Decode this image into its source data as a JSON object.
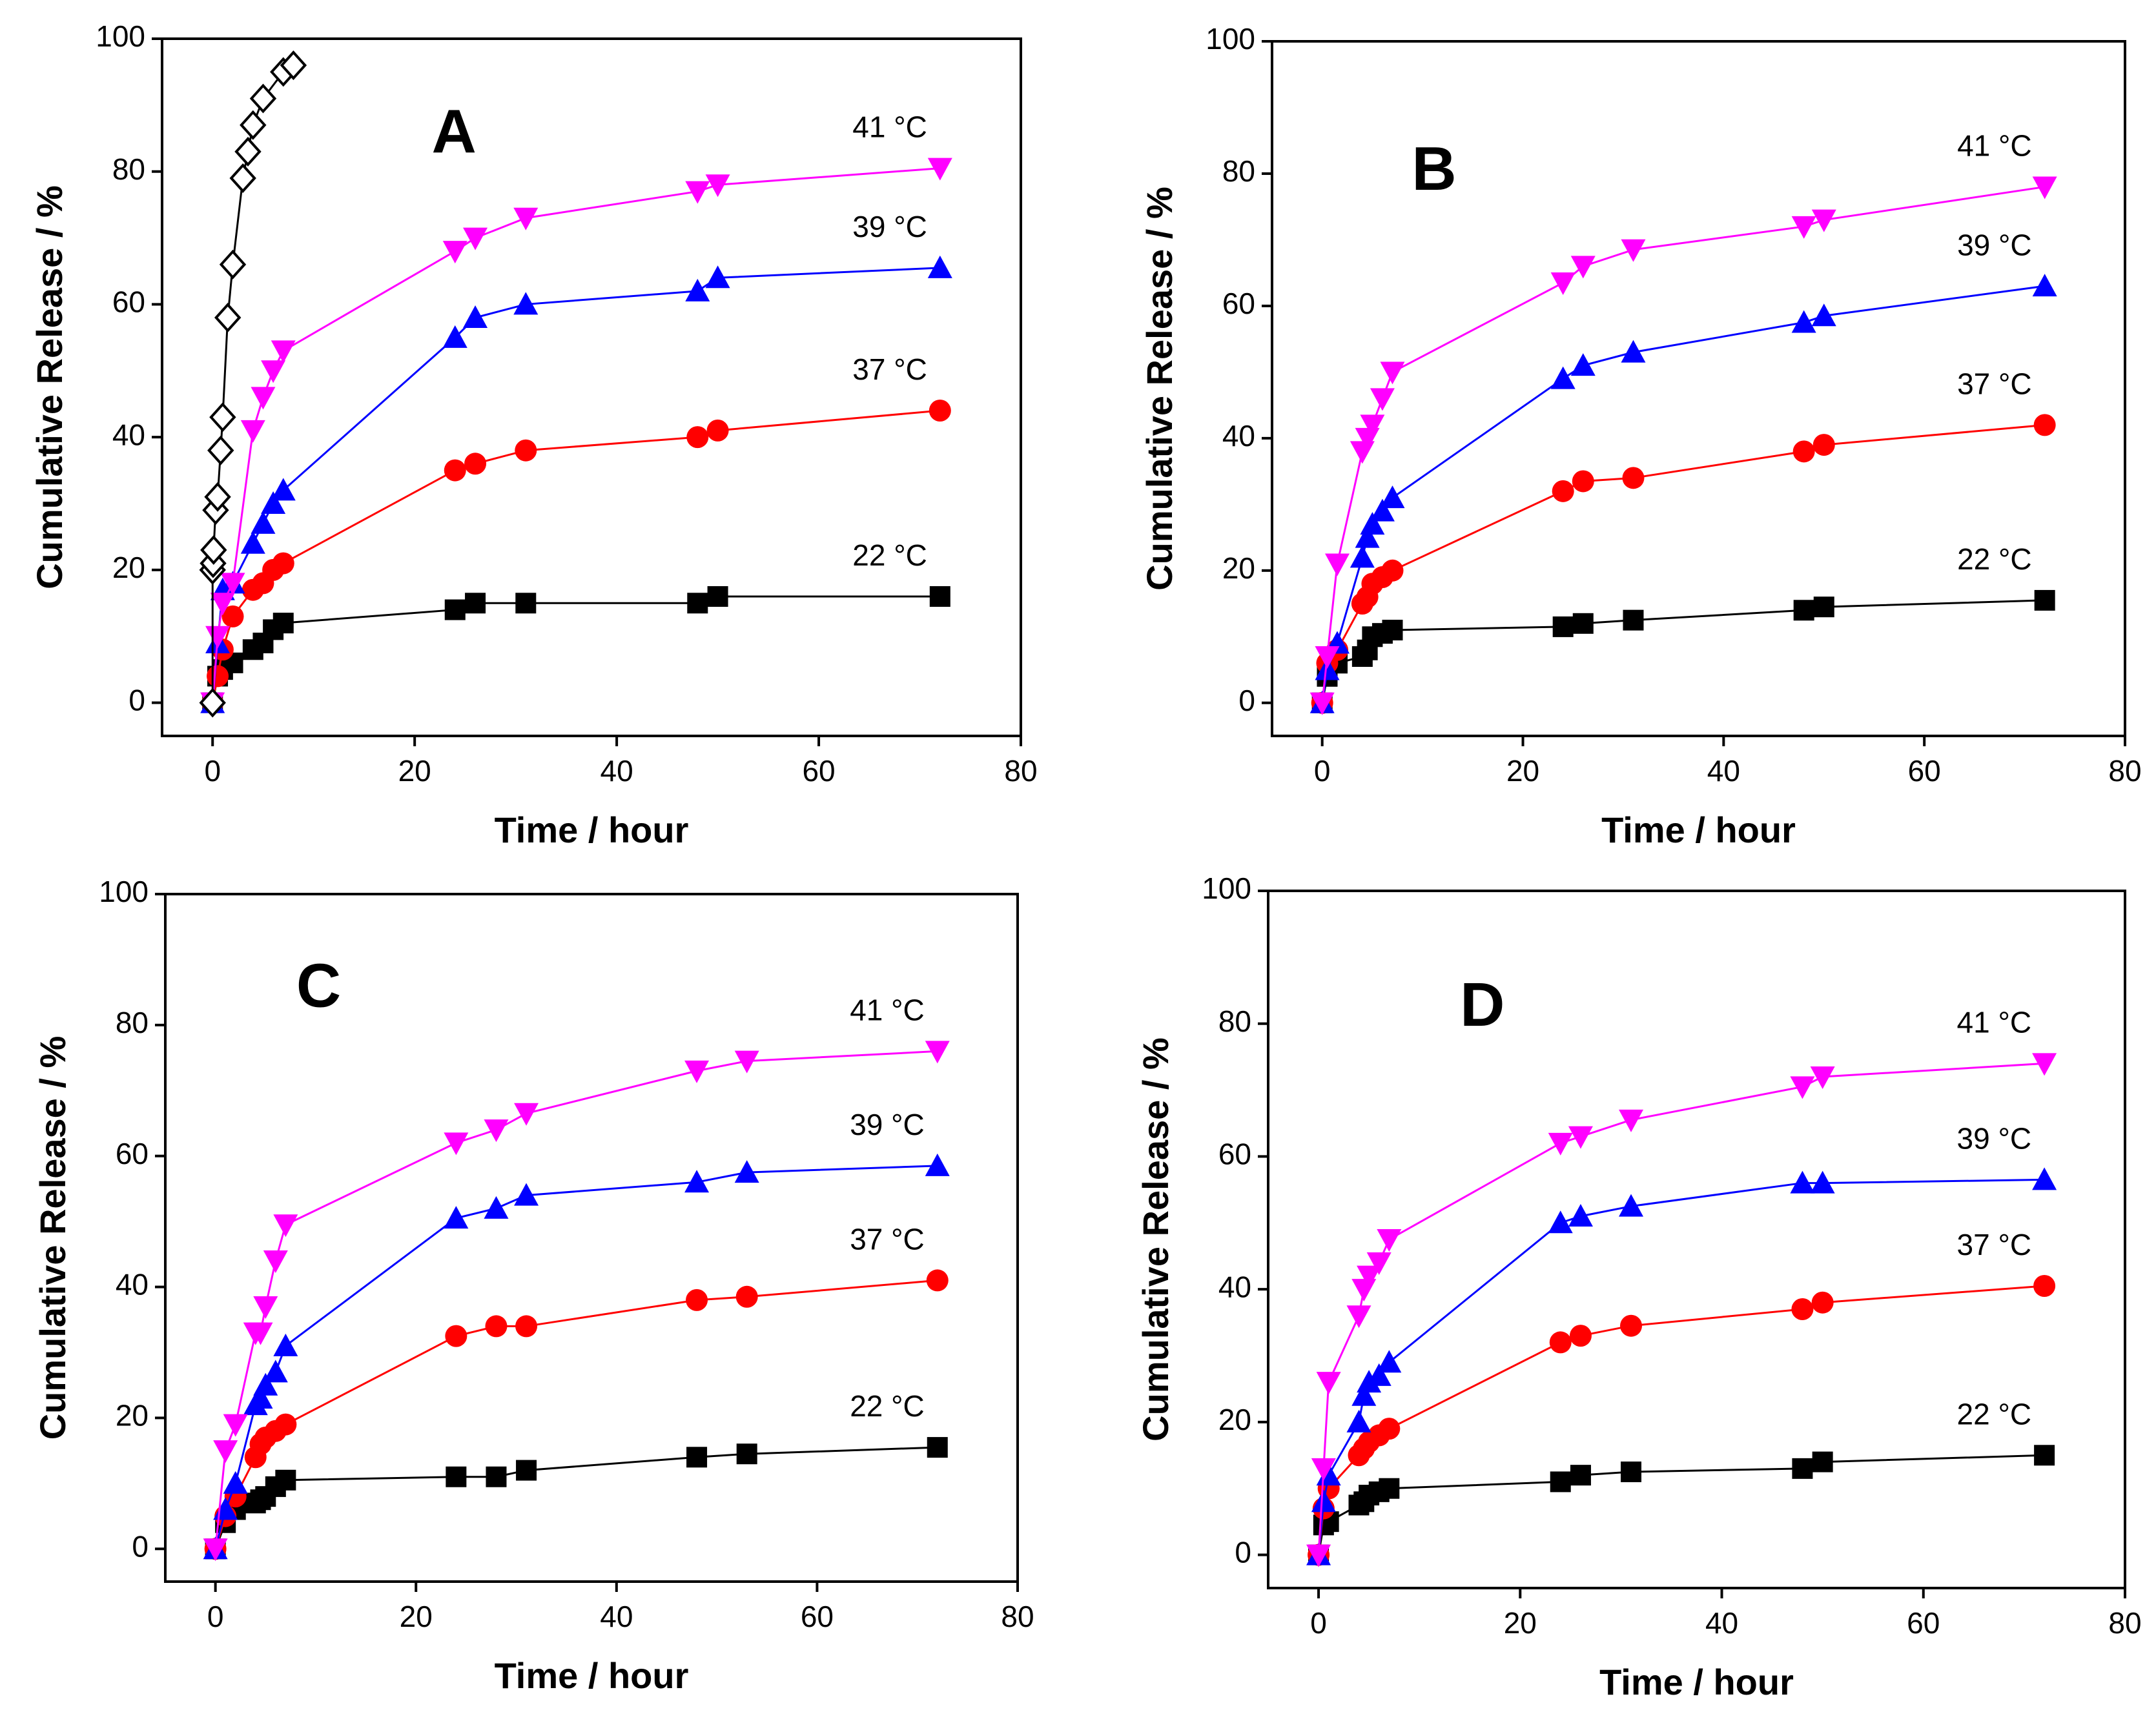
{
  "chart_data": [
    {
      "type": "line",
      "title": "A",
      "x_label": "Time  /  hour",
      "y_label": "Cumulative Release  /  %",
      "xlim": [
        -5,
        80
      ],
      "ylim": [
        -5,
        100
      ],
      "xticks": [
        0,
        20,
        40,
        60,
        80
      ],
      "yticks": [
        0,
        20,
        40,
        60,
        80,
        100
      ],
      "x": [
        0,
        0.5,
        1,
        2,
        4,
        5,
        6,
        7,
        24,
        26,
        31,
        48,
        50,
        72
      ],
      "series": [
        {
          "name": "22 °C",
          "color": "#000000",
          "marker": "square",
          "values": [
            0,
            4,
            5,
            6,
            8,
            9,
            11,
            12,
            14,
            15,
            15,
            15,
            16,
            16
          ]
        },
        {
          "name": "37 °C",
          "color": "#ff0000",
          "marker": "circle",
          "values": [
            0,
            4,
            8,
            13,
            17,
            18,
            20,
            21,
            35,
            36,
            38,
            40,
            41,
            44
          ]
        },
        {
          "name": "39 °C",
          "color": "#0000ff",
          "marker": "triangle-up",
          "values": [
            0,
            9,
            17,
            18,
            24,
            27,
            30,
            32,
            55,
            58,
            60,
            62,
            64,
            65.5
          ]
        },
        {
          "name": "41 °C",
          "color": "#ff00ff",
          "marker": "triangle-down",
          "values": [
            0,
            10,
            15,
            18,
            41,
            46,
            50,
            53,
            68,
            70,
            73,
            77,
            78,
            80.5
          ]
        },
        {
          "color": "#000000",
          "marker": "diamond-open",
          "x": [
            0,
            0,
            0.05,
            0.1,
            0.3,
            0.5,
            0.8,
            1,
            1.5,
            2,
            3,
            3.5,
            4,
            5,
            7,
            8
          ],
          "values": [
            0,
            20,
            21,
            23,
            29,
            31,
            38,
            43,
            58,
            66,
            79,
            83,
            87,
            91,
            95,
            96
          ]
        }
      ]
    },
    {
      "type": "line",
      "title": "B",
      "x_label": "Time  /  hour",
      "y_label": "Cumulative Release  /  %",
      "xlim": [
        -5,
        80
      ],
      "ylim": [
        -5,
        100
      ],
      "xticks": [
        0,
        20,
        40,
        60,
        80
      ],
      "yticks": [
        0,
        20,
        40,
        60,
        80,
        100
      ],
      "x": [
        0,
        0.5,
        1.5,
        4,
        4.5,
        5,
        6,
        7,
        24,
        26,
        31,
        48,
        50,
        72
      ],
      "series": [
        {
          "name": "22 °C",
          "color": "#000000",
          "marker": "square",
          "values": [
            0,
            4,
            6,
            7,
            8,
            10,
            10.5,
            11,
            11.5,
            12,
            12.5,
            14,
            14.5,
            15.5
          ]
        },
        {
          "name": "37 °C",
          "color": "#ff0000",
          "marker": "circle",
          "values": [
            0,
            6,
            8,
            15,
            16,
            18,
            19,
            20,
            32,
            33.5,
            34,
            38,
            39,
            42
          ]
        },
        {
          "name": "39 °C",
          "color": "#0000ff",
          "marker": "triangle-up",
          "values": [
            0,
            5,
            9,
            22,
            25,
            27,
            29,
            31,
            49,
            51,
            53,
            57.5,
            58.5,
            63
          ]
        },
        {
          "name": "41 °C",
          "color": "#ff00ff",
          "marker": "triangle-down",
          "values": [
            0,
            7,
            21,
            38,
            40,
            42,
            46,
            50,
            63.5,
            66,
            68.5,
            72,
            73,
            78
          ]
        }
      ]
    },
    {
      "type": "line",
      "title": "C",
      "x_label": "Time  /  hour",
      "y_label": "Cumulative Release  /  %",
      "xlim": [
        -5,
        80
      ],
      "ylim": [
        -5,
        100
      ],
      "xticks": [
        0,
        20,
        40,
        60,
        80
      ],
      "yticks": [
        0,
        20,
        40,
        60,
        80,
        100
      ],
      "x": [
        0,
        1,
        2,
        4,
        4.5,
        5,
        6,
        7,
        24,
        28,
        31,
        48,
        53,
        72
      ],
      "series": [
        {
          "name": "22 °C",
          "color": "#000000",
          "marker": "square",
          "values": [
            0,
            4,
            6,
            7,
            7.5,
            8,
            9.5,
            10.5,
            11,
            11,
            12,
            14,
            14.5,
            15.5
          ]
        },
        {
          "name": "37 °C",
          "color": "#ff0000",
          "marker": "circle",
          "values": [
            0,
            5,
            8,
            14,
            16,
            17,
            18,
            19,
            32.5,
            34,
            34,
            38,
            38.5,
            41
          ]
        },
        {
          "name": "39 °C",
          "color": "#0000ff",
          "marker": "triangle-up",
          "values": [
            0,
            6,
            10,
            22,
            23,
            25,
            27,
            31,
            50.5,
            52,
            54,
            56,
            57.5,
            58.5
          ]
        },
        {
          "name": "41 °C",
          "color": "#ff00ff",
          "marker": "triangle-down",
          "values": [
            0,
            15,
            19,
            33,
            33,
            37,
            44,
            49.5,
            62,
            64,
            66.5,
            73,
            74.5,
            76
          ]
        }
      ]
    },
    {
      "type": "line",
      "title": "D",
      "x_label": "Time  /  hour",
      "y_label": "Cumulative Release  /  %",
      "xlim": [
        -5,
        80
      ],
      "ylim": [
        -5,
        100
      ],
      "xticks": [
        0,
        20,
        40,
        60,
        80
      ],
      "yticks": [
        0,
        20,
        40,
        60,
        80,
        100
      ],
      "x": [
        0,
        0.5,
        1,
        4,
        4.5,
        5,
        6,
        7,
        24,
        26,
        31,
        48,
        50,
        72
      ],
      "series": [
        {
          "name": "22 °C",
          "color": "#000000",
          "marker": "square",
          "values": [
            0,
            4.5,
            5,
            7.5,
            8,
            9,
            9.5,
            10,
            11,
            12,
            12.5,
            13,
            14,
            15
          ]
        },
        {
          "name": "37 °C",
          "color": "#ff0000",
          "marker": "circle",
          "values": [
            0,
            7,
            10,
            15,
            16,
            17,
            18,
            19,
            32,
            33,
            34.5,
            37,
            38,
            40.5
          ]
        },
        {
          "name": "39 °C",
          "color": "#0000ff",
          "marker": "triangle-up",
          "values": [
            0,
            8,
            12,
            20,
            24,
            26,
            27,
            29,
            50,
            51,
            52.5,
            56,
            56,
            56.5
          ]
        },
        {
          "name": "41 °C",
          "color": "#ff00ff",
          "marker": "triangle-down",
          "values": [
            0,
            13,
            26,
            36,
            40,
            42,
            44,
            47.5,
            62,
            63,
            65.5,
            70.5,
            72,
            74
          ]
        }
      ]
    }
  ]
}
